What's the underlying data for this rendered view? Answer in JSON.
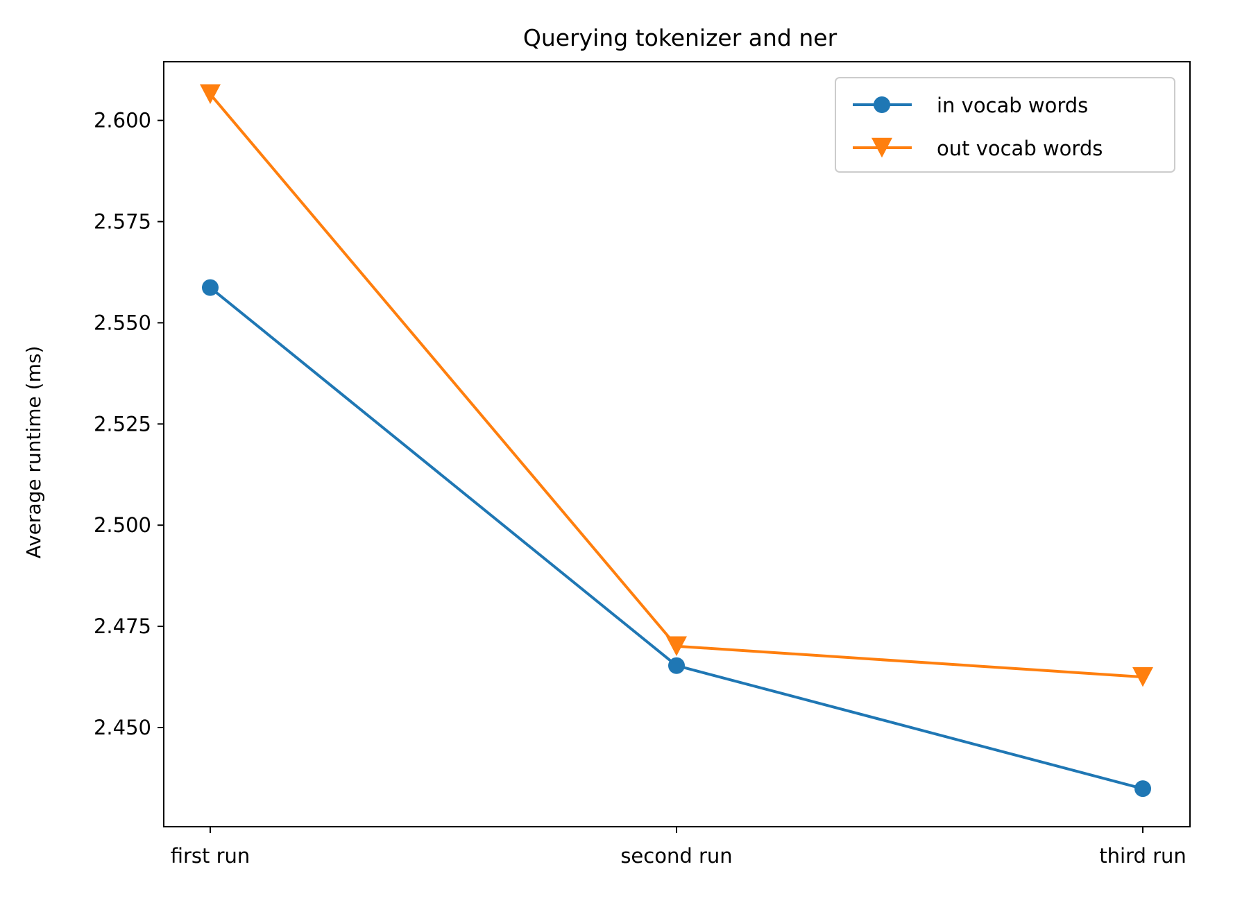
{
  "chart_data": {
    "type": "line",
    "title": "Querying tokenizer and ner",
    "xlabel": "",
    "ylabel": "Average runtime (ms)",
    "categories": [
      "first run",
      "second run",
      "third run"
    ],
    "ylim": [
      2.4255,
      2.6145
    ],
    "yticks": [
      "2.450",
      "2.475",
      "2.500",
      "2.525",
      "2.550",
      "2.575",
      "2.600"
    ],
    "grid": false,
    "legend_position": "top-right",
    "series": [
      {
        "name": "in vocab words",
        "color": "#1f77b4",
        "marker": "circle",
        "values": [
          2.5587,
          2.4653,
          2.4349
        ]
      },
      {
        "name": "out vocab words",
        "color": "#ff7f0e",
        "marker": "triangle-down",
        "values": [
          2.6065,
          2.4701,
          2.4625
        ]
      }
    ]
  }
}
